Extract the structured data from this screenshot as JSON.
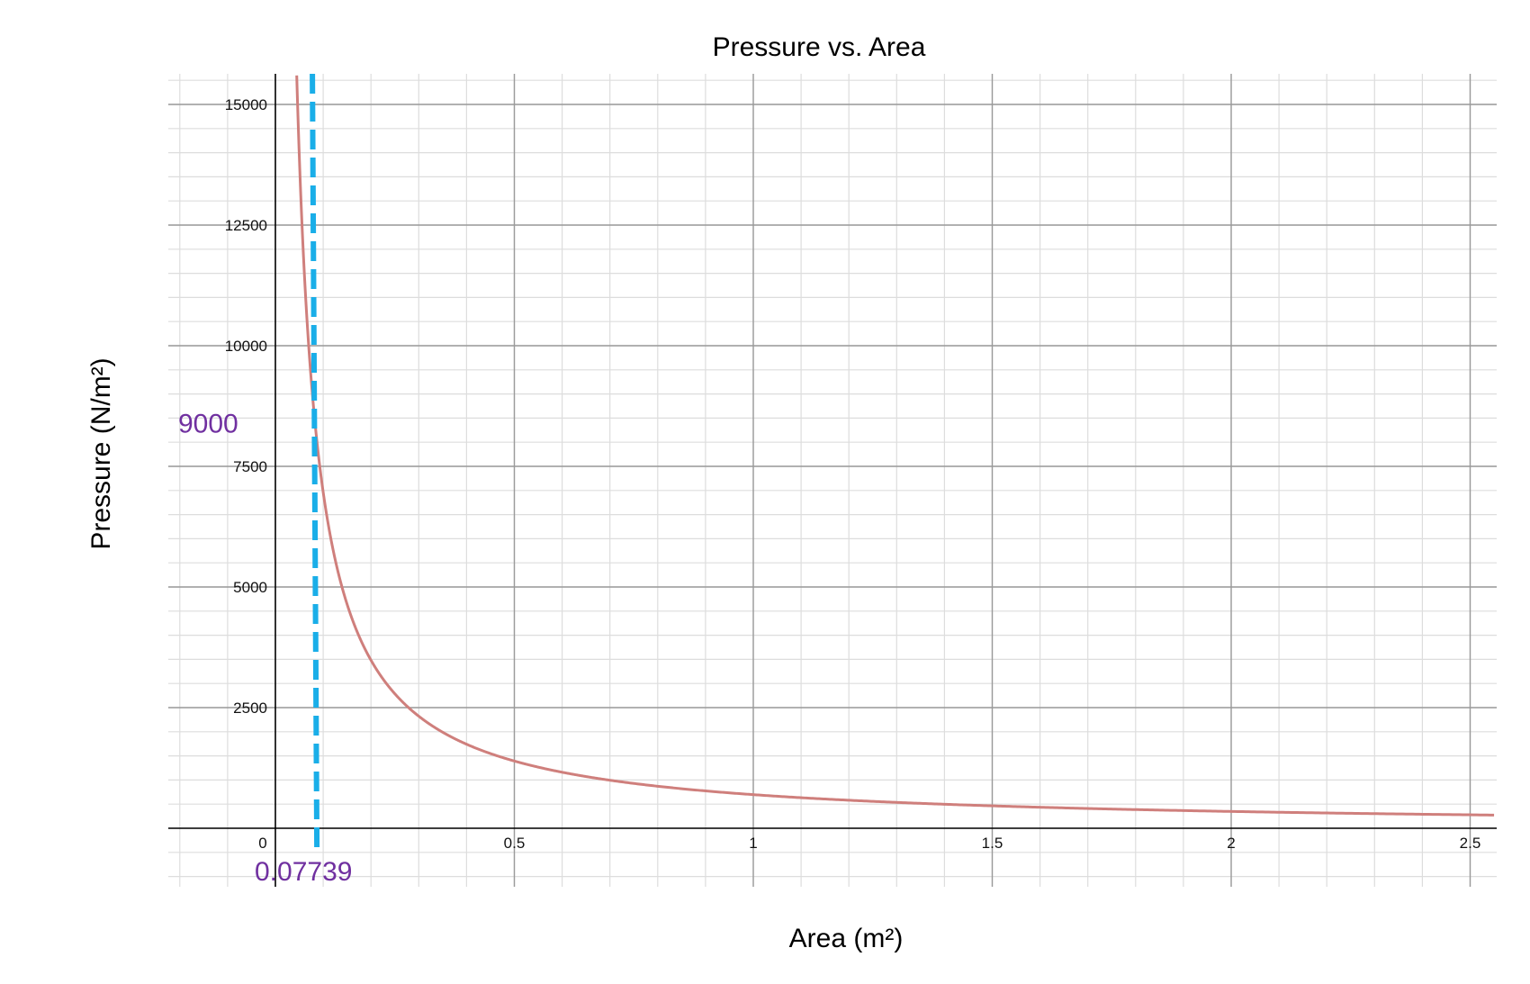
{
  "chart_data": {
    "type": "line",
    "title": "Pressure vs. Area",
    "xlabel": "Area (m²)",
    "ylabel": "Pressure (N/m²)",
    "xlim": [
      -0.225,
      2.55
    ],
    "ylim": [
      -2000,
      15600
    ],
    "x_ticks": [
      0,
      0.5,
      1,
      1.5,
      2,
      2.5
    ],
    "x_tick_labels": [
      "0",
      "0.5",
      "1",
      "1.5",
      "2",
      "2.5"
    ],
    "y_ticks": [
      2500,
      5000,
      7500,
      10000,
      12500,
      15000
    ],
    "y_tick_labels": [
      "2500",
      "5000",
      "7500",
      "10000",
      "12500",
      "15000"
    ],
    "grid": true,
    "series": [
      {
        "formula": "P = 696.5 / A",
        "constant": 696.5,
        "x_range": [
          0.045,
          2.55
        ],
        "color": "#cf7f7c"
      }
    ],
    "reference_line": {
      "x": 0.07739,
      "color": "#1aaee8",
      "style": "dashed"
    },
    "annotations": [
      {
        "text": "9000",
        "color": "#7030a0",
        "value": 9000
      },
      {
        "text": "0.07739",
        "color": "#7030a0",
        "value": 0.07739
      }
    ],
    "colors": {
      "axis": "#000000",
      "major_grid": "#9a9a9a",
      "minor_grid": "#dddddd"
    }
  }
}
